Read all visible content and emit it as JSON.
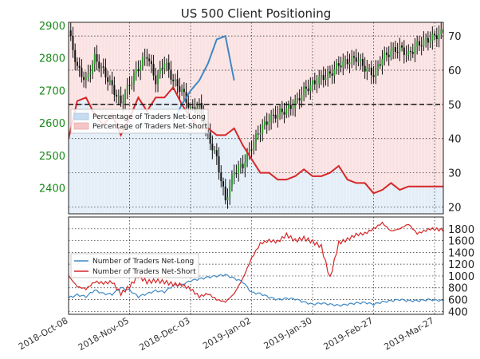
{
  "chart_data": [
    {
      "type": "line",
      "title": "US 500 Client Positioning",
      "xlabel": "",
      "x_tick_labels": [
        "2018-Oct-08",
        "2018-Nov-05",
        "2018-Dec-03",
        "2019-Jan-02",
        "2019-Jan-30",
        "2019-Feb-27",
        "2019-Mar-27"
      ],
      "price_axis": {
        "position": "left",
        "ticks": [
          2400,
          2500,
          2600,
          2700,
          2800,
          2900
        ],
        "range": [
          2320,
          2910
        ],
        "color": "#1a8a1a"
      },
      "percent_axis": {
        "position": "right",
        "ticks": [
          20,
          30,
          40,
          50,
          60,
          70
        ],
        "range": [
          18,
          74
        ],
        "reference_line": 50
      },
      "grid": true,
      "legend": {
        "placement": "left",
        "entries": [
          "Percentage of Traders Net-Long",
          "Percentage of Traders Net-Short"
        ]
      },
      "series": [
        {
          "name": "Percentage of Traders Net-Short",
          "axis": "percent",
          "color": "#d62728",
          "x_index": [
            0,
            4,
            8,
            12,
            16,
            20,
            24,
            28,
            32,
            36,
            40,
            44,
            48,
            52,
            56,
            60,
            64,
            68,
            72,
            76,
            80,
            84,
            88,
            92,
            96,
            100,
            104,
            108,
            112,
            116,
            120,
            124,
            128,
            132,
            136,
            140,
            144,
            148,
            152,
            156,
            160,
            166,
            172
          ],
          "values": [
            40,
            51,
            52,
            47,
            44,
            47,
            41,
            46,
            52,
            48,
            52,
            52,
            55,
            50,
            46,
            43,
            43,
            41,
            41,
            43,
            38,
            34,
            30,
            30,
            28,
            28,
            29,
            31,
            29,
            29,
            30,
            32,
            28,
            27,
            27,
            24,
            25,
            27,
            25,
            26,
            26,
            26,
            26
          ]
        },
        {
          "name": "Percentage of Traders Net-Long",
          "axis": "percent",
          "color": "#3f88c5",
          "x_index": [
            48,
            52,
            56,
            60,
            64,
            68,
            72,
            76
          ],
          "values": [
            45,
            50,
            54,
            57,
            62,
            69,
            70,
            57
          ]
        },
        {
          "name": "US 500 price",
          "axis": "price",
          "style": "candles",
          "color": "#111111",
          "x_index": [
            0,
            4,
            8,
            12,
            16,
            20,
            24,
            28,
            32,
            36,
            40,
            44,
            48,
            52,
            56,
            60,
            64,
            68,
            72,
            76,
            80,
            84,
            88,
            92,
            96,
            100,
            104,
            108,
            112,
            116,
            120,
            124,
            128,
            132,
            136,
            140,
            144,
            148,
            152,
            156,
            160,
            166,
            172
          ],
          "values": [
            2885,
            2770,
            2730,
            2800,
            2760,
            2710,
            2660,
            2720,
            2770,
            2810,
            2730,
            2790,
            2730,
            2700,
            2640,
            2650,
            2560,
            2490,
            2360,
            2450,
            2470,
            2530,
            2580,
            2610,
            2630,
            2640,
            2660,
            2700,
            2720,
            2740,
            2750,
            2780,
            2790,
            2800,
            2770,
            2750,
            2800,
            2820,
            2830,
            2810,
            2840,
            2860,
            2880
          ]
        }
      ]
    },
    {
      "type": "line",
      "xlabel": "",
      "y_axis": {
        "position": "right",
        "ticks": [
          400,
          600,
          800,
          1000,
          1200,
          1400,
          1600,
          1800
        ],
        "range": [
          350,
          2000
        ]
      },
      "grid": true,
      "legend": {
        "placement": "left",
        "entries": [
          "Number of Traders Net-Long",
          "Number of Traders Net-Short"
        ]
      },
      "series": [
        {
          "name": "Number of Traders Net-Long",
          "color": "#3f88c5",
          "x_index": [
            0,
            4,
            8,
            12,
            16,
            20,
            24,
            28,
            32,
            36,
            40,
            44,
            48,
            52,
            56,
            60,
            64,
            68,
            72,
            76,
            80,
            84,
            88,
            92,
            96,
            100,
            104,
            108,
            112,
            116,
            120,
            124,
            128,
            132,
            136,
            140,
            144,
            148,
            152,
            156,
            160,
            166,
            172
          ],
          "values": [
            630,
            680,
            650,
            760,
            700,
            690,
            800,
            760,
            650,
            700,
            750,
            730,
            840,
            850,
            920,
            950,
            980,
            1000,
            1020,
            960,
            900,
            720,
            700,
            640,
            600,
            620,
            610,
            560,
            520,
            540,
            520,
            500,
            520,
            540,
            550,
            520,
            560,
            580,
            600,
            580,
            580,
            600,
            580
          ]
        },
        {
          "name": "Number of Traders Net-Short",
          "color": "#d62728",
          "x_index": [
            0,
            4,
            8,
            12,
            16,
            20,
            24,
            28,
            32,
            36,
            40,
            44,
            48,
            52,
            56,
            60,
            64,
            68,
            72,
            76,
            80,
            84,
            88,
            92,
            96,
            100,
            104,
            108,
            112,
            116,
            120,
            124,
            128,
            132,
            136,
            140,
            144,
            148,
            152,
            156,
            160,
            166,
            172
          ],
          "values": [
            1000,
            820,
            780,
            900,
            880,
            900,
            700,
            820,
            1000,
            900,
            920,
            900,
            860,
            850,
            780,
            650,
            700,
            600,
            560,
            700,
            960,
            1300,
            1550,
            1600,
            1580,
            1700,
            1600,
            1640,
            1580,
            1500,
            960,
            1560,
            1620,
            1700,
            1720,
            1800,
            1900,
            1760,
            1800,
            1880,
            1720,
            1800,
            1780
          ]
        }
      ]
    }
  ]
}
